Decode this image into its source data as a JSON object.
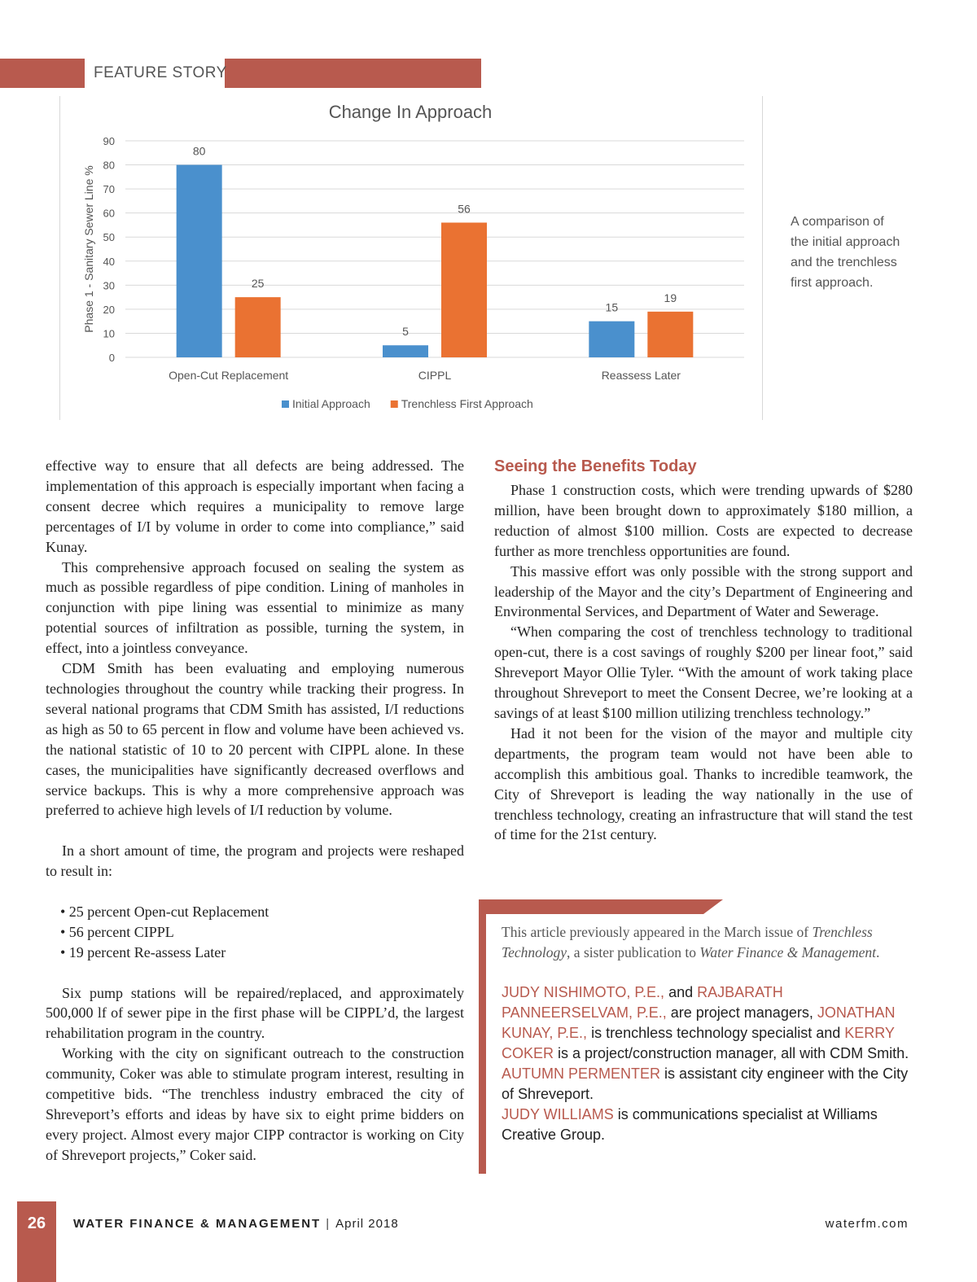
{
  "header": {
    "section_label": "FEATURE STORY"
  },
  "chart_data": {
    "type": "bar",
    "title": "Change In Approach",
    "ylabel": "Phase 1 - Sanitary Sewer Line %",
    "xlabel": "",
    "ylim": [
      0,
      90
    ],
    "yticks": [
      "0",
      "10",
      "20",
      "30",
      "40",
      "50",
      "60",
      "70",
      "80",
      "90"
    ],
    "categories": [
      "Open-Cut Replacement",
      "CIPPL",
      "Reassess Later"
    ],
    "series": [
      {
        "name": "Initial Approach",
        "values": [
          80,
          5,
          15
        ],
        "color": "#4a90cd"
      },
      {
        "name": "Trenchless First Approach",
        "values": [
          25,
          56,
          19
        ],
        "color": "#ea7232"
      }
    ],
    "grid": true,
    "legend": "bottom"
  },
  "caption": "A comparison of the initial approach and the trenchless first approach.",
  "left_column": {
    "p1": "effective way to ensure that all defects are being addressed. The implementation of this approach is especially important when facing a consent decree which requires a municipality to remove large percentages of I/I by volume in order to come into compliance,” said Kunay.",
    "p2": "This comprehensive approach focused on sealing the system as much as possible regardless of pipe condition. Lining of manholes in conjunction with pipe lining was essential to minimize as many potential sources of infiltration as possible, turning the system, in effect, into a jointless conveyance.",
    "p3": "CDM Smith has been evaluating and employing numerous technologies throughout the country while tracking their progress. In several national programs that CDM Smith has assisted, I/I reductions as high as 50 to 65 percent in flow and volume have been achieved vs. the national statistic of 10 to 20 percent with CIPPL alone. In these cases, the municipalities have significantly decreased overflows and service backups. This is why a more comprehensive approach was preferred to achieve high levels of I/I reduction by volume.",
    "p4": "In a short amount of time, the program and projects were reshaped to result in:",
    "bullets": [
      "• 25 percent Open-cut Replacement",
      "• 56 percent CIPPL",
      "• 19 percent Re-assess Later"
    ],
    "p5": "Six pump stations will be repaired/replaced, and approximately 500,000 lf of sewer pipe in the first phase will be CIPPL’d, the largest rehabilitation program in the country.",
    "p6": "Working with the city on significant outreach to the construction community, Coker was able to stimulate program interest, resulting in competitive bids. “The trenchless industry embraced the city of Shreveport’s efforts and ideas by have six to eight prime bidders on every project. Almost every major CIPP contractor is working on City of Shreveport projects,” Coker said."
  },
  "right_column": {
    "heading": "Seeing the Benefits Today",
    "p1": "Phase 1 construction costs, which were trending upwards of $280 million, have been brought down to approximately $180 million, a reduction of almost $100 million. Costs are expected to decrease further as more trenchless opportunities are found.",
    "p2": "This massive effort was only possible with the strong support and leadership of the Mayor and the city’s Department of Engineering and Environmental Services, and Department of Water and Sewerage.",
    "p3": "“When comparing the cost of trenchless technology to traditional open-cut, there is a cost savings of roughly $200 per linear foot,” said Shreveport Mayor Ollie Tyler. “With the amount of work taking place throughout Shreveport to meet the Consent Decree, we’re looking at a savings of at least $100 million utilizing trenchless technology.”",
    "p4": "Had it not been for the vision of the mayor and multiple city departments, the program team would not have been able to accomplish this ambitious goal. Thanks to incredible teamwork, the City of Shreveport is leading the way nationally in the use of trenchless technology, creating an infrastructure that will stand the test of time for the 21st century."
  },
  "sidebar": {
    "note_a": "This article previously appeared in the March issue of ",
    "note_pub1": "Trenchless Technology",
    "note_b": ", a sister publication to ",
    "note_pub2": "Water Finance & Management",
    "note_c": ".",
    "name1": "JUDY NISHIMOTO, P.E.,",
    "t1": " and ",
    "name2": "RAJBARATH PANNEERSELVAM, P.E.,",
    "t2": " are project managers, ",
    "name3": "JONATHAN KUNAY, P.E.,",
    "t3": " is trenchless technology specialist and ",
    "name4": "KERRY COKER",
    "t4": " is a project/construction manager, all with CDM Smith.",
    "name5": "AUTUMN PERMENTER",
    "t5": " is assistant city engineer with the City of Shreveport.",
    "name6": "JUDY WILLIAMS",
    "t6": " is communications specialist at Williams Creative Group."
  },
  "footer": {
    "page_number": "26",
    "publication": "WATER FINANCE & MANAGEMENT",
    "separator": "|",
    "date": "April 2018",
    "website": "waterfm.com"
  },
  "colors": {
    "accent": "#b85a4e",
    "series1": "#4a90cd",
    "series2": "#ea7232"
  }
}
